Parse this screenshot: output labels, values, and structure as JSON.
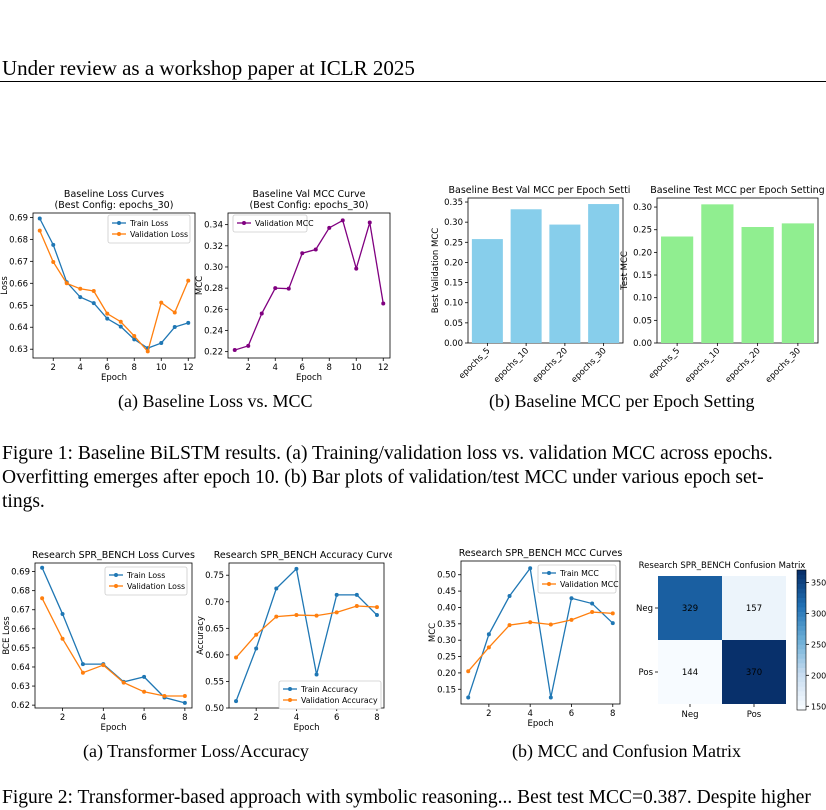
{
  "header": "Under review as a workshop paper at ICLR 2025",
  "figure1": {
    "subcaption_a": "(a)  Baseline Loss vs. MCC",
    "subcaption_b": "(b)  Baseline MCC per Epoch Setting",
    "caption_lines": [
      "Figure 1: Baseline BiLSTM results. (a) Training/validation loss vs. validation MCC across epochs.",
      "Overfitting emerges after epoch 10.  (b) Bar plots of validation/test MCC under various epoch set-",
      "tings."
    ]
  },
  "figure2": {
    "subcaption_a": "(a)  Transformer Loss/Accuracy",
    "subcaption_b": "(b)  MCC and Confusion Matrix",
    "caption_partial": "Figure 2: Transformer-based approach with symbolic reasoning... Best test MCC=0.387. Despite higher"
  },
  "colors": {
    "blue": "#1f77b4",
    "orange": "#ff7f0e",
    "purple": "#800080",
    "skyblue": "#87ceeb",
    "lightgreen": "#90ee90"
  },
  "chart_data": [
    {
      "id": "c1",
      "type": "line",
      "title": "Baseline Loss Curves\n(Best Config: epochs_30)",
      "xlabel": "Epoch",
      "ylabel": "Loss",
      "xlim": [
        0.5,
        12.5
      ],
      "ylim": [
        0.626,
        0.692
      ],
      "xticks": [
        2,
        4,
        6,
        8,
        10,
        12
      ],
      "yticks": [
        0.63,
        0.64,
        0.65,
        0.66,
        0.67,
        0.68,
        0.69
      ],
      "legend": "upper right",
      "x": [
        1,
        2,
        3,
        4,
        5,
        6,
        7,
        8,
        9,
        10,
        11,
        12
      ],
      "series": [
        {
          "name": "Train Loss",
          "color": "#1f77b4",
          "values": [
            0.6895,
            0.6775,
            0.6605,
            0.6537,
            0.651,
            0.6439,
            0.6403,
            0.6345,
            0.6305,
            0.6328,
            0.6401,
            0.642
          ]
        },
        {
          "name": "Validation Loss",
          "color": "#ff7f0e",
          "values": [
            0.684,
            0.6697,
            0.66,
            0.6575,
            0.6565,
            0.6462,
            0.6425,
            0.636,
            0.629,
            0.6512,
            0.6467,
            0.6612
          ]
        }
      ]
    },
    {
      "id": "c2",
      "type": "line",
      "title": "Baseline Val MCC Curve\n(Best Config: epochs_30)",
      "xlabel": "Epoch",
      "ylabel": "MCC",
      "xlim": [
        0.5,
        12.5
      ],
      "ylim": [
        0.214,
        0.351
      ],
      "xticks": [
        2,
        4,
        6,
        8,
        10,
        12
      ],
      "yticks": [
        0.22,
        0.24,
        0.26,
        0.28,
        0.3,
        0.32,
        0.34
      ],
      "legend": "upper left",
      "x": [
        1,
        2,
        3,
        4,
        5,
        6,
        7,
        8,
        9,
        10,
        11,
        12
      ],
      "series": [
        {
          "name": "Validation MCC",
          "color": "#800080",
          "values": [
            0.2215,
            0.2255,
            0.256,
            0.28,
            0.2795,
            0.313,
            0.3165,
            0.337,
            0.344,
            0.2985,
            0.342,
            0.2655
          ]
        }
      ]
    },
    {
      "id": "c3",
      "type": "bar",
      "title": "Baseline Best Val MCC per Epoch Setting",
      "xlabel": "",
      "ylabel": "Best Validation MCC",
      "ylim": [
        0,
        0.36
      ],
      "yticks": [
        0.0,
        0.05,
        0.1,
        0.15,
        0.2,
        0.25,
        0.3,
        0.35
      ],
      "categories": [
        "epochs_5",
        "epochs_10",
        "epochs_20",
        "epochs_30"
      ],
      "series": [
        {
          "name": "",
          "color": "#87ceeb",
          "values": [
            0.258,
            0.332,
            0.294,
            0.345
          ]
        }
      ]
    },
    {
      "id": "c4",
      "type": "bar",
      "title": "Baseline Test MCC per Epoch Setting",
      "xlabel": "",
      "ylabel": "Test MCC",
      "ylim": [
        0,
        0.32
      ],
      "yticks": [
        0.0,
        0.05,
        0.1,
        0.15,
        0.2,
        0.25,
        0.3
      ],
      "categories": [
        "epochs_5",
        "epochs_10",
        "epochs_20",
        "epochs_30"
      ],
      "series": [
        {
          "name": "",
          "color": "#90ee90",
          "values": [
            0.235,
            0.306,
            0.256,
            0.264
          ]
        }
      ]
    },
    {
      "id": "c5",
      "type": "line",
      "title": "Research SPR_BENCH Loss Curves",
      "xlabel": "Epoch",
      "ylabel": "BCE Loss",
      "xlim": [
        0.65,
        8.35
      ],
      "ylim": [
        0.6185,
        0.6945
      ],
      "xticks": [
        2,
        4,
        6,
        8
      ],
      "yticks": [
        0.62,
        0.63,
        0.64,
        0.65,
        0.66,
        0.67,
        0.68,
        0.69
      ],
      "legend": "upper right",
      "x": [
        1,
        2,
        3,
        4,
        5,
        6,
        7,
        8
      ],
      "series": [
        {
          "name": "Train Loss",
          "color": "#1f77b4",
          "values": [
            0.692,
            0.6678,
            0.6415,
            0.6415,
            0.6322,
            0.6348,
            0.624,
            0.6212
          ]
        },
        {
          "name": "Validation Loss",
          "color": "#ff7f0e",
          "values": [
            0.676,
            0.6548,
            0.637,
            0.641,
            0.6318,
            0.627,
            0.6248,
            0.6248
          ]
        }
      ]
    },
    {
      "id": "c6",
      "type": "line",
      "title": "Research SPR_BENCH Accuracy Curves",
      "xlabel": "Epoch",
      "ylabel": "Accuracy",
      "xlim": [
        0.65,
        8.35
      ],
      "ylim": [
        0.5,
        0.773
      ],
      "xticks": [
        2,
        4,
        6,
        8
      ],
      "yticks": [
        0.5,
        0.55,
        0.6,
        0.65,
        0.7,
        0.75
      ],
      "legend": "lower right",
      "x": [
        1,
        2,
        3,
        4,
        5,
        6,
        7,
        8
      ],
      "series": [
        {
          "name": "Train Accuracy",
          "color": "#1f77b4",
          "values": [
            0.513,
            0.612,
            0.725,
            0.762,
            0.563,
            0.713,
            0.713,
            0.675
          ]
        },
        {
          "name": "Validation Accuracy",
          "color": "#ff7f0e",
          "values": [
            0.595,
            0.638,
            0.672,
            0.675,
            0.674,
            0.68,
            0.692,
            0.69
          ]
        }
      ]
    },
    {
      "id": "c7",
      "type": "line",
      "title": "Research SPR_BENCH MCC Curves",
      "xlabel": "Epoch",
      "ylabel": "MCC",
      "xlim": [
        0.65,
        8.35
      ],
      "ylim": [
        0.105,
        0.542
      ],
      "xticks": [
        2,
        4,
        6,
        8
      ],
      "yticks": [
        0.15,
        0.2,
        0.25,
        0.3,
        0.35,
        0.4,
        0.45,
        0.5
      ],
      "legend": "upper right",
      "x": [
        1,
        2,
        3,
        4,
        5,
        6,
        7,
        8
      ],
      "series": [
        {
          "name": "Train MCC",
          "color": "#1f77b4",
          "values": [
            0.125,
            0.318,
            0.435,
            0.52,
            0.125,
            0.428,
            0.412,
            0.352
          ]
        },
        {
          "name": "Validation MCC",
          "color": "#ff7f0e",
          "values": [
            0.205,
            0.278,
            0.346,
            0.355,
            0.348,
            0.362,
            0.386,
            0.382
          ]
        }
      ]
    },
    {
      "id": "c8",
      "type": "heatmap",
      "title": "Research SPR_BENCH Confusion Matrix",
      "rows": [
        "Neg",
        "Pos"
      ],
      "cols": [
        "Neg",
        "Pos"
      ],
      "values": [
        [
          329,
          157
        ],
        [
          144,
          370
        ]
      ],
      "colorbar_ticks": [
        150,
        200,
        250,
        300,
        350
      ],
      "vmin": 144,
      "vmax": 370
    }
  ]
}
